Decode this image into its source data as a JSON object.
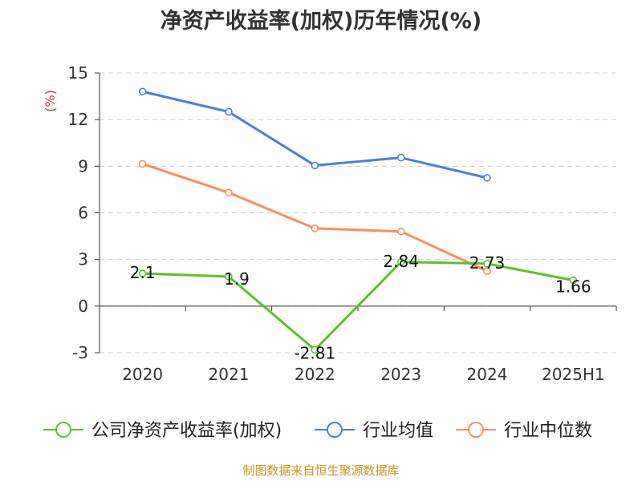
{
  "chart_data": {
    "type": "line",
    "title": "净资产收益率(加权)历年情况(%)",
    "ylabel": "(%)",
    "xlabel": "",
    "categories": [
      "2020",
      "2021",
      "2022",
      "2023",
      "2024",
      "2025H1"
    ],
    "y_ticks": [
      15,
      12,
      9,
      6,
      3,
      0,
      -3
    ],
    "ylim": [
      -3,
      15
    ],
    "grid": true,
    "legend_position": "bottom",
    "series": [
      {
        "name": "公司净资产收益率(加权)",
        "color": "#5bc227",
        "values": [
          2.1,
          1.9,
          -2.81,
          2.84,
          2.73,
          1.66
        ],
        "labels": [
          "2.1",
          "1.9",
          "-2.81",
          "2.84",
          "2.73",
          "1.66"
        ]
      },
      {
        "name": "行业均值",
        "color": "#4a7fd6",
        "values": [
          13.8,
          12.5,
          9.05,
          9.55,
          8.25,
          null
        ]
      },
      {
        "name": "行业中位数",
        "color": "#f78f5a",
        "values": [
          9.15,
          7.3,
          5.0,
          4.8,
          2.25,
          null
        ]
      }
    ]
  },
  "source_text": "制图数据来自恒生聚源数据库",
  "colors": {
    "axis": "#333333",
    "grid": "#cccccc",
    "ylabel": "#e0302b",
    "source": "#c8961e"
  }
}
